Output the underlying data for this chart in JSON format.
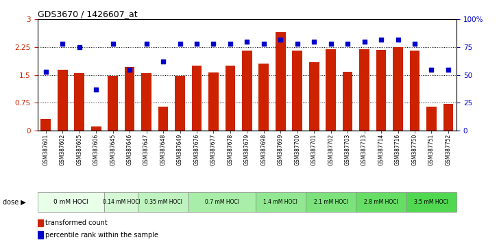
{
  "title": "GDS3670 / 1426607_at",
  "samples": [
    "GSM387601",
    "GSM387602",
    "GSM387605",
    "GSM387606",
    "GSM387645",
    "GSM387646",
    "GSM387647",
    "GSM387648",
    "GSM387649",
    "GSM387676",
    "GSM387677",
    "GSM387678",
    "GSM387679",
    "GSM387698",
    "GSM387699",
    "GSM387700",
    "GSM387701",
    "GSM387702",
    "GSM387703",
    "GSM387713",
    "GSM387714",
    "GSM387716",
    "GSM387750",
    "GSM387751",
    "GSM387752"
  ],
  "bar_values": [
    0.32,
    1.65,
    1.55,
    0.12,
    1.48,
    1.72,
    1.55,
    0.65,
    1.47,
    1.75,
    1.57,
    1.75,
    2.15,
    1.8,
    2.65,
    2.15,
    1.85,
    2.2,
    1.58,
    2.2,
    2.18,
    2.25,
    2.15,
    0.65,
    0.72
  ],
  "dot_values": [
    53,
    78,
    75,
    37,
    78,
    55,
    78,
    62,
    78,
    78,
    78,
    78,
    80,
    78,
    82,
    78,
    80,
    78,
    78,
    80,
    82,
    82,
    78,
    55,
    55
  ],
  "dose_groups": [
    {
      "label": "0 mM HOCl",
      "start": 0,
      "end": 4,
      "shade": 0
    },
    {
      "label": "0.14 mM HOCl",
      "start": 4,
      "end": 6,
      "shade": 1
    },
    {
      "label": "0.35 mM HOCl",
      "start": 6,
      "end": 9,
      "shade": 2
    },
    {
      "label": "0.7 mM HOCl",
      "start": 9,
      "end": 13,
      "shade": 3
    },
    {
      "label": "1.4 mM HOCl",
      "start": 13,
      "end": 16,
      "shade": 4
    },
    {
      "label": "2.1 mM HOCl",
      "start": 16,
      "end": 19,
      "shade": 5
    },
    {
      "label": "2.8 mM HOCl",
      "start": 19,
      "end": 22,
      "shade": 6
    },
    {
      "label": "3.5 mM HOCl",
      "start": 22,
      "end": 25,
      "shade": 7
    }
  ],
  "green_shades": [
    "#e8ffe8",
    "#d4f7d4",
    "#bef2be",
    "#a8eda8",
    "#92e892",
    "#7ce37c",
    "#66de66",
    "#50d950"
  ],
  "bar_color": "#cc2200",
  "dot_color": "#0000cc",
  "ylim_left": [
    0,
    3
  ],
  "ylim_right": [
    0,
    100
  ],
  "yticks_left": [
    0,
    0.75,
    1.5,
    2.25,
    3.0
  ],
  "yticks_right": [
    0,
    25,
    50,
    75,
    100
  ],
  "ytick_labels_left": [
    "0",
    "0.75",
    "1.5",
    "2.25",
    "3"
  ],
  "ytick_labels_right": [
    "0",
    "25",
    "50",
    "75",
    "100%"
  ],
  "xtick_bg": "#d0d0d0",
  "bg_color": "#ffffff"
}
